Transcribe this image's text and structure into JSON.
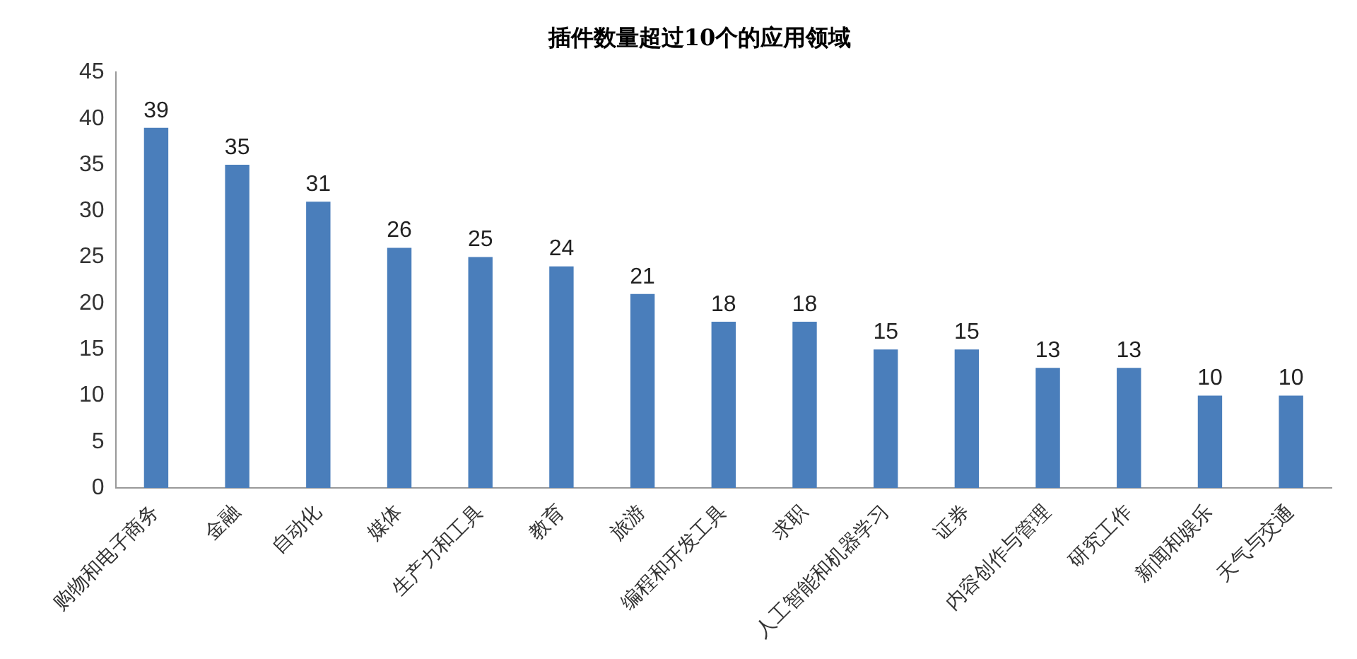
{
  "chart_data": {
    "type": "bar",
    "title": "插件数量超过10个的应用领域",
    "categories": [
      "购物和电子商务",
      "金融",
      "自动化",
      "媒体",
      "生产力和工具",
      "教育",
      "旅游",
      "编程和开发工具",
      "求职",
      "人工智能和机器学习",
      "证券",
      "内容创作与管理",
      "研究工作",
      "新闻和娱乐",
      "天气与交通"
    ],
    "values": [
      39,
      35,
      31,
      26,
      25,
      24,
      21,
      18,
      18,
      15,
      15,
      13,
      13,
      10,
      10
    ],
    "color": "#4a7ebb",
    "ylim": [
      0,
      45
    ],
    "yticks": [
      0,
      5,
      10,
      15,
      20,
      25,
      30,
      35,
      40,
      45
    ],
    "grid": false,
    "legend": false,
    "data_labels": true
  }
}
